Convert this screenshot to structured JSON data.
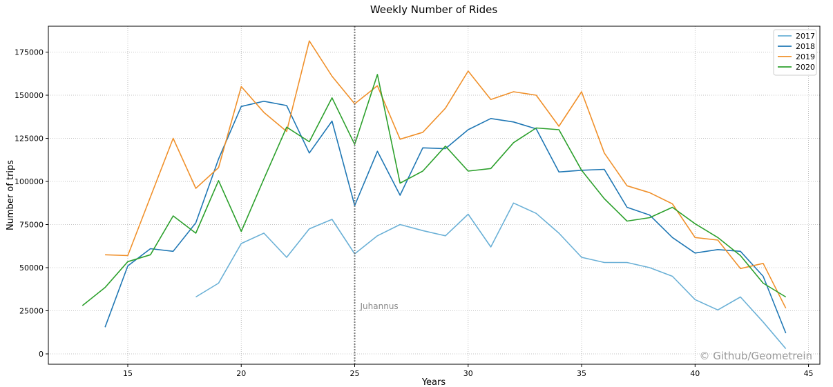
{
  "chart_data": {
    "type": "line",
    "title": "Weekly Number of Rides",
    "xlabel": "Years",
    "ylabel": "Number of trips",
    "xlim": [
      11.5,
      45.5
    ],
    "ylim": [
      -6000,
      190000
    ],
    "xticks": [
      15,
      20,
      25,
      30,
      35,
      40,
      45
    ],
    "yticks": [
      0,
      25000,
      50000,
      75000,
      100000,
      125000,
      150000,
      175000
    ],
    "grid": true,
    "grid_style": "dotted",
    "legend_position": "top-right",
    "series": [
      {
        "name": "2017",
        "color": "#6ab0d6",
        "x": [
          18,
          19,
          20,
          21,
          22,
          23,
          24,
          25,
          26,
          27,
          28,
          29,
          30,
          31,
          32,
          33,
          34,
          35,
          36,
          37,
          38,
          39,
          40,
          41,
          42,
          43,
          44
        ],
        "values": [
          33000,
          41000,
          64000,
          70000,
          56000,
          72500,
          78000,
          58000,
          68500,
          75000,
          71500,
          68500,
          81000,
          62000,
          87500,
          81500,
          70000,
          56000,
          53000,
          53000,
          50000,
          45000,
          31500,
          25500,
          33000,
          18500,
          3000
        ]
      },
      {
        "name": "2018",
        "color": "#1f77b4",
        "x": [
          14,
          15,
          16,
          17,
          18,
          19,
          20,
          21,
          22,
          23,
          24,
          25,
          26,
          27,
          28,
          29,
          30,
          31,
          32,
          33,
          34,
          35,
          36,
          37,
          38,
          39,
          40,
          41,
          42,
          43,
          44
        ],
        "values": [
          15500,
          51000,
          61000,
          59500,
          76000,
          113000,
          143500,
          146500,
          144000,
          116500,
          135000,
          86000,
          117500,
          92000,
          119500,
          119000,
          130000,
          136500,
          134500,
          130500,
          105500,
          106500,
          107000,
          85000,
          80500,
          67500,
          58500,
          60500,
          59500,
          45000,
          12000
        ]
      },
      {
        "name": "2019",
        "color": "#f0902a",
        "x": [
          14,
          15,
          16,
          17,
          18,
          19,
          20,
          21,
          22,
          23,
          24,
          25,
          26,
          27,
          28,
          29,
          30,
          31,
          32,
          33,
          34,
          35,
          36,
          37,
          38,
          39,
          40,
          41,
          42,
          43,
          44
        ],
        "values": [
          57500,
          57000,
          91000,
          125000,
          96000,
          108000,
          155000,
          140000,
          129000,
          181500,
          161000,
          145000,
          155500,
          124500,
          128500,
          142500,
          164000,
          147500,
          152000,
          150000,
          132000,
          152000,
          116500,
          97500,
          93500,
          87000,
          67500,
          66000,
          49500,
          52500,
          26500
        ]
      },
      {
        "name": "2020",
        "color": "#2ca02c",
        "x": [
          13,
          14,
          15,
          16,
          17,
          18,
          19,
          20,
          21,
          22,
          23,
          24,
          25,
          26,
          27,
          28,
          29,
          30,
          31,
          32,
          33,
          34,
          35,
          36,
          37,
          38,
          39,
          40,
          41,
          42,
          43,
          44
        ],
        "values": [
          28000,
          38500,
          53500,
          57500,
          80000,
          70000,
          100500,
          71000,
          101500,
          131500,
          123000,
          148500,
          121500,
          162000,
          99000,
          106000,
          120500,
          106000,
          107500,
          122500,
          131000,
          130000,
          106500,
          90000,
          77000,
          79000,
          85000,
          75500,
          67500,
          57000,
          41000,
          33000
        ]
      }
    ],
    "vline": {
      "x": 25,
      "label": "Juhannus",
      "color": "#7a7a7a"
    },
    "watermark": "© Github/Geometrein"
  }
}
